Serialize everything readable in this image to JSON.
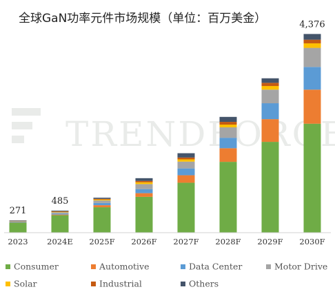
{
  "chart_data": {
    "type": "bar",
    "stacked": true,
    "title": "全球GaN功率元件市场规模（单位：百万美金）",
    "categories": [
      "2023",
      "2024E",
      "2025F",
      "2026F",
      "2027F",
      "2028F",
      "2029F",
      "2030F"
    ],
    "totals_labels": [
      "271",
      "485",
      "",
      "",
      "",
      "",
      "",
      "4,376"
    ],
    "totals": [
      271,
      485,
      770,
      1200,
      1750,
      2550,
      3400,
      4376
    ],
    "ylim": [
      0,
      4700
    ],
    "grid": false,
    "legend_position": "bottom",
    "watermark": "TrendForce",
    "series": [
      {
        "name": "Consumer",
        "color": "#6fac46",
        "values": [
          220,
          385,
          560,
          790,
          1100,
          1560,
          2000,
          2400
        ]
      },
      {
        "name": "Automotive",
        "color": "#ed7d31",
        "values": [
          5,
          15,
          45,
          80,
          165,
          300,
          500,
          750
        ]
      },
      {
        "name": "Data Center",
        "color": "#5b9bd5",
        "values": [
          10,
          20,
          50,
          90,
          150,
          230,
          350,
          500
        ]
      },
      {
        "name": "Motor Drive",
        "color": "#a5a5a5",
        "values": [
          15,
          30,
          55,
          110,
          150,
          230,
          300,
          420
        ]
      },
      {
        "name": "Solar",
        "color": "#ffc000",
        "values": [
          5,
          10,
          20,
          40,
          50,
          60,
          80,
          100
        ]
      },
      {
        "name": "Industrial",
        "color": "#c55a11",
        "values": [
          6,
          10,
          15,
          30,
          40,
          60,
          70,
          80
        ]
      },
      {
        "name": "Others",
        "color": "#44546a",
        "values": [
          10,
          15,
          25,
          60,
          95,
          110,
          100,
          126
        ]
      }
    ]
  }
}
